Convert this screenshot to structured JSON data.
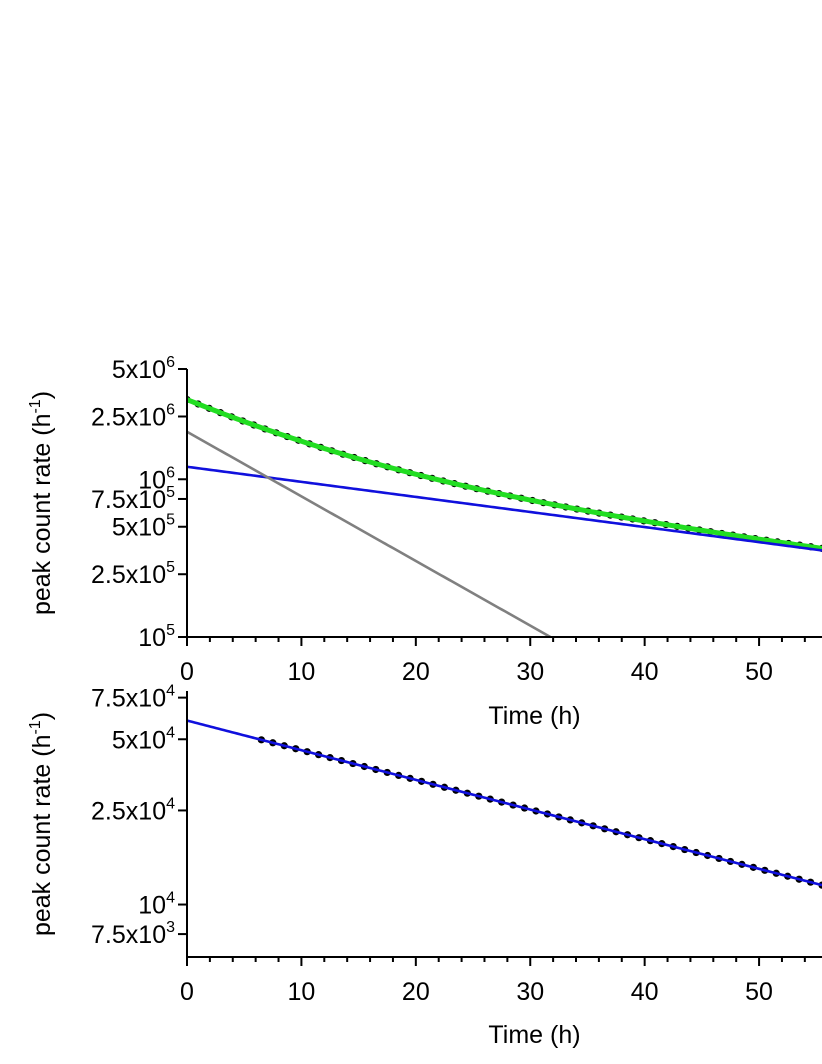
{
  "chart_data": [
    {
      "type": "scatter",
      "xlabel": "Time (h)",
      "ylabel": "peak count rate (h",
      "ylabel_sup": "-1",
      "ylabel_close": ")",
      "yscale": "log",
      "xlim": [
        0,
        55.5
      ],
      "ylim": [
        100000,
        5000000
      ],
      "xticks": [
        {
          "v": 0,
          "t": "0"
        },
        {
          "v": 10,
          "t": "10"
        },
        {
          "v": 20,
          "t": "20"
        },
        {
          "v": 30,
          "t": "30"
        },
        {
          "v": 40,
          "t": "40"
        },
        {
          "v": 50,
          "t": "50"
        }
      ],
      "yticks": [
        {
          "v": 5000000,
          "base": "5x10",
          "exp": "6"
        },
        {
          "v": 2500000,
          "base": "2.5x10",
          "exp": "6"
        },
        {
          "v": 1000000,
          "base": "10",
          "exp": "6"
        },
        {
          "v": 750000,
          "base": "7.5x10",
          "exp": "5"
        },
        {
          "v": 500000,
          "base": "5x10",
          "exp": "5"
        },
        {
          "v": 250000,
          "base": "2.5x10",
          "exp": "5"
        },
        {
          "v": 100000,
          "base": "10",
          "exp": "5"
        }
      ],
      "series": [
        {
          "kind": "points",
          "color": "#000000",
          "x_start": 0,
          "x_end": 55.5,
          "count": 58,
          "components": [
            {
              "a": 1200000,
              "half_life": 31.5
            },
            {
              "a": 2000000,
              "half_life": 7.35
            }
          ]
        },
        {
          "kind": "fit",
          "color": "#22dd22",
          "components": [
            {
              "a": 1200000,
              "half_life": 31.5
            },
            {
              "a": 2000000,
              "half_life": 7.35
            }
          ]
        },
        {
          "kind": "line",
          "color": "#1010dd",
          "components": [
            {
              "a": 1200000,
              "half_life": 31.5
            }
          ]
        },
        {
          "kind": "line",
          "color": "#808080",
          "components": [
            {
              "a": 2000000,
              "half_life": 7.35
            }
          ]
        }
      ]
    },
    {
      "type": "scatter",
      "xlabel": "Time (h)",
      "ylabel": "peak count rate (h",
      "ylabel_sup": "-1",
      "ylabel_close": ")",
      "yscale": "log",
      "xlim": [
        0,
        55.5
      ],
      "ylim": [
        6000,
        80000
      ],
      "xticks": [
        {
          "v": 0,
          "t": "0"
        },
        {
          "v": 10,
          "t": "10"
        },
        {
          "v": 20,
          "t": "20"
        },
        {
          "v": 30,
          "t": "30"
        },
        {
          "v": 40,
          "t": "40"
        },
        {
          "v": 50,
          "t": "50"
        }
      ],
      "yticks": [
        {
          "v": 75000,
          "base": "7.5x10",
          "exp": "4"
        },
        {
          "v": 50000,
          "base": "5x10",
          "exp": "4"
        },
        {
          "v": 25000,
          "base": "2.5x10",
          "exp": "4"
        },
        {
          "v": 10000,
          "base": "10",
          "exp": "4"
        },
        {
          "v": 7500,
          "base": "7.5x10",
          "exp": "3"
        }
      ],
      "series": [
        {
          "kind": "points",
          "color": "#000000",
          "x_start": 6.5,
          "x_end": 55.5,
          "count": 50,
          "components": [
            {
              "a": 60000,
              "half_life": 24.0
            }
          ]
        },
        {
          "kind": "line",
          "color": "#1010dd",
          "components": [
            {
              "a": 60000,
              "half_life": 24.0
            }
          ]
        }
      ]
    }
  ]
}
